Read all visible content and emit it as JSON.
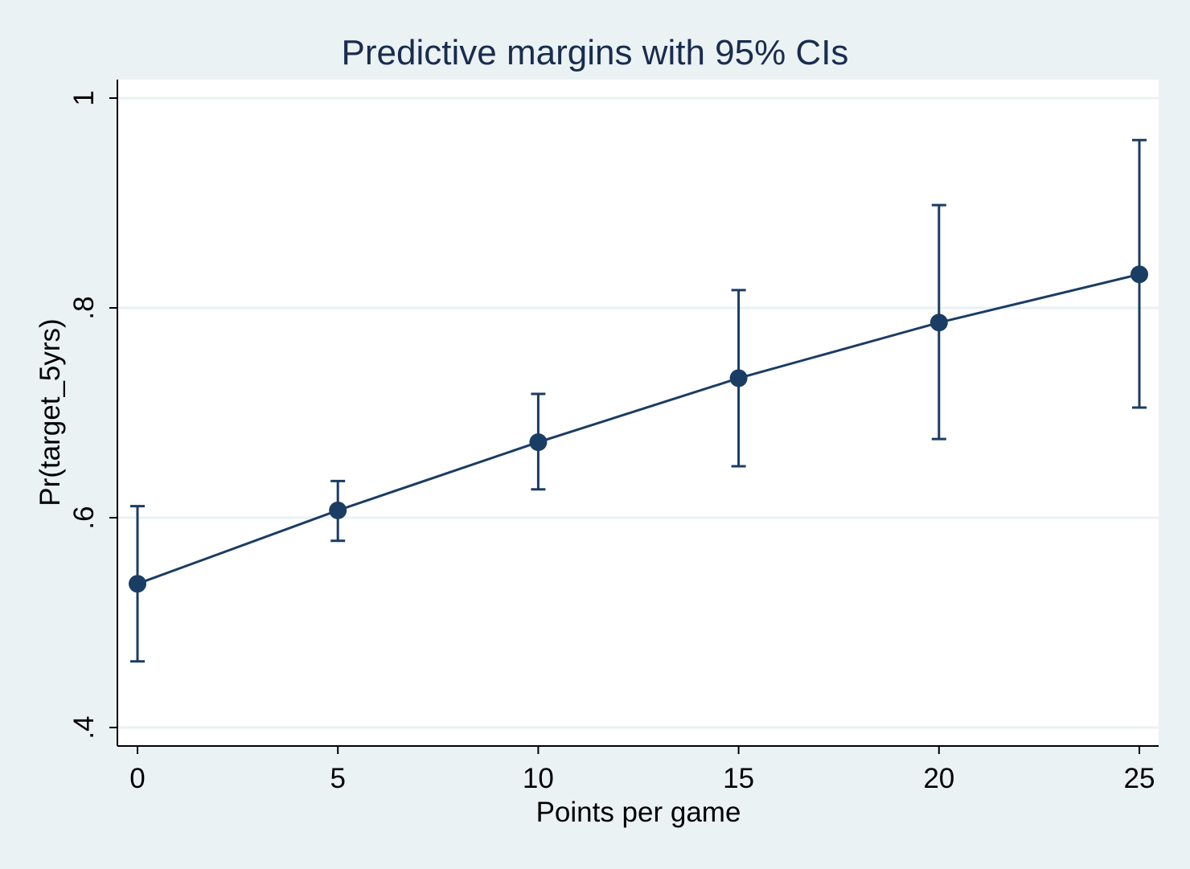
{
  "chart_data": {
    "type": "line",
    "title": "Predictive margins with 95% CIs",
    "xlabel": "Points per game",
    "ylabel": "Pr(target_5yrs)",
    "x": [
      0,
      5,
      10,
      15,
      20,
      25
    ],
    "y": [
      0.537,
      0.607,
      0.672,
      0.733,
      0.786,
      0.832
    ],
    "ci_lower": [
      0.463,
      0.578,
      0.627,
      0.649,
      0.675,
      0.705
    ],
    "ci_upper": [
      0.611,
      0.635,
      0.718,
      0.817,
      0.898,
      0.96
    ],
    "xlim": [
      0,
      25
    ],
    "ylim": [
      0.4,
      1.0
    ],
    "xticks": [
      0,
      5,
      10,
      15,
      20,
      25
    ],
    "xtick_labels": [
      "0",
      "5",
      "10",
      "15",
      "20",
      "25"
    ],
    "yticks": [
      0.4,
      0.6,
      0.8,
      1.0
    ],
    "ytick_labels": [
      ".4",
      ".6",
      ".8",
      "1"
    ],
    "grid": true,
    "legend": "none"
  },
  "colors": {
    "series": "#1a3d63",
    "background": "#eaf2f3",
    "plot_area": "#ffffff",
    "gridline": "#eaf2f3",
    "text": "#000000",
    "title": "#1a2c4e"
  }
}
